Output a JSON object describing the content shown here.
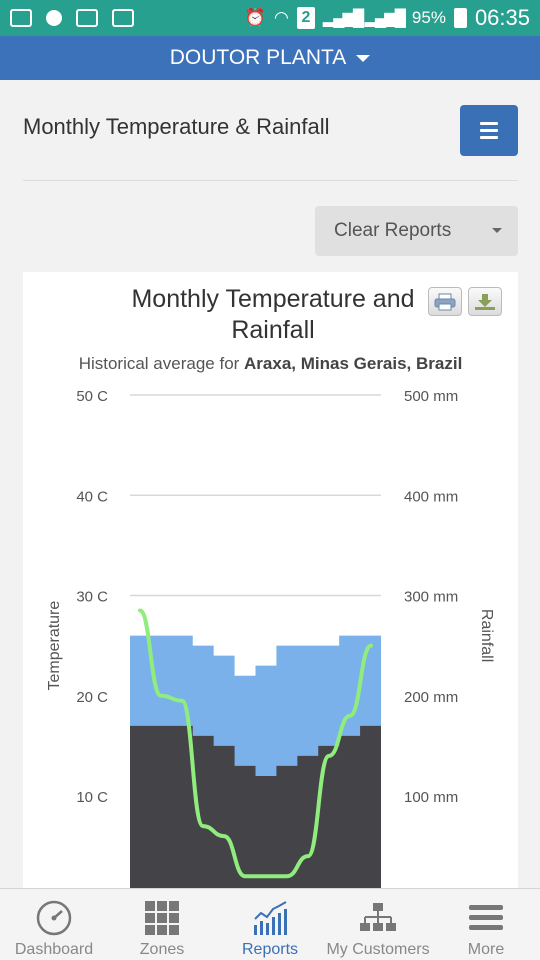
{
  "statusbar": {
    "battery": "95%",
    "time": "06:35",
    "sim": "2",
    "icons": [
      "image-icon",
      "chat-icon",
      "mail-icon",
      "voicemail-icon",
      "alarm-icon",
      "wifi-icon",
      "signal-icon",
      "battery-icon"
    ]
  },
  "appbar": {
    "title": "DOUTOR PLANTA"
  },
  "page": {
    "title": "Monthly Temperature & Rainfall",
    "clear_reports": "Clear Reports"
  },
  "chart": {
    "title_line1": "Monthly Temperature and",
    "title_line2": "Rainfall",
    "subtitle_prefix": "Historical average for ",
    "subtitle_location": "Araxa, Minas Gerais, Brazil"
  },
  "chart_data": {
    "type": "area",
    "y_left": {
      "label": "Temperature",
      "ticks": [
        "10 C",
        "20 C",
        "30 C",
        "40 C",
        "50 C"
      ],
      "range": [
        0,
        50
      ]
    },
    "y_right": {
      "label": "Rainfall",
      "ticks": [
        "100 mm",
        "200 mm",
        "300 mm",
        "400 mm",
        "500 mm"
      ],
      "range": [
        0,
        500
      ]
    },
    "grid": true,
    "series": [
      {
        "type": "area",
        "color": "#7ab1ea",
        "values": [
          26,
          26,
          26,
          25,
          24,
          22,
          23,
          25,
          25,
          25,
          26,
          26
        ]
      },
      {
        "type": "area",
        "color": "#444348",
        "values": [
          17,
          17,
          17,
          16,
          15,
          13,
          12,
          13,
          14,
          15,
          16,
          17
        ]
      },
      {
        "type": "line",
        "color": "#90ed7d",
        "values_mm": [
          285,
          200,
          195,
          70,
          60,
          20,
          20,
          20,
          40,
          140,
          180,
          250
        ]
      }
    ]
  },
  "nav": {
    "items": [
      {
        "label": "Dashboard",
        "icon": "gauge-icon"
      },
      {
        "label": "Zones",
        "icon": "grid-icon"
      },
      {
        "label": "Reports",
        "icon": "chart-icon"
      },
      {
        "label": "My Customers",
        "icon": "org-chart-icon"
      },
      {
        "label": "More",
        "icon": "menu-icon"
      }
    ]
  }
}
